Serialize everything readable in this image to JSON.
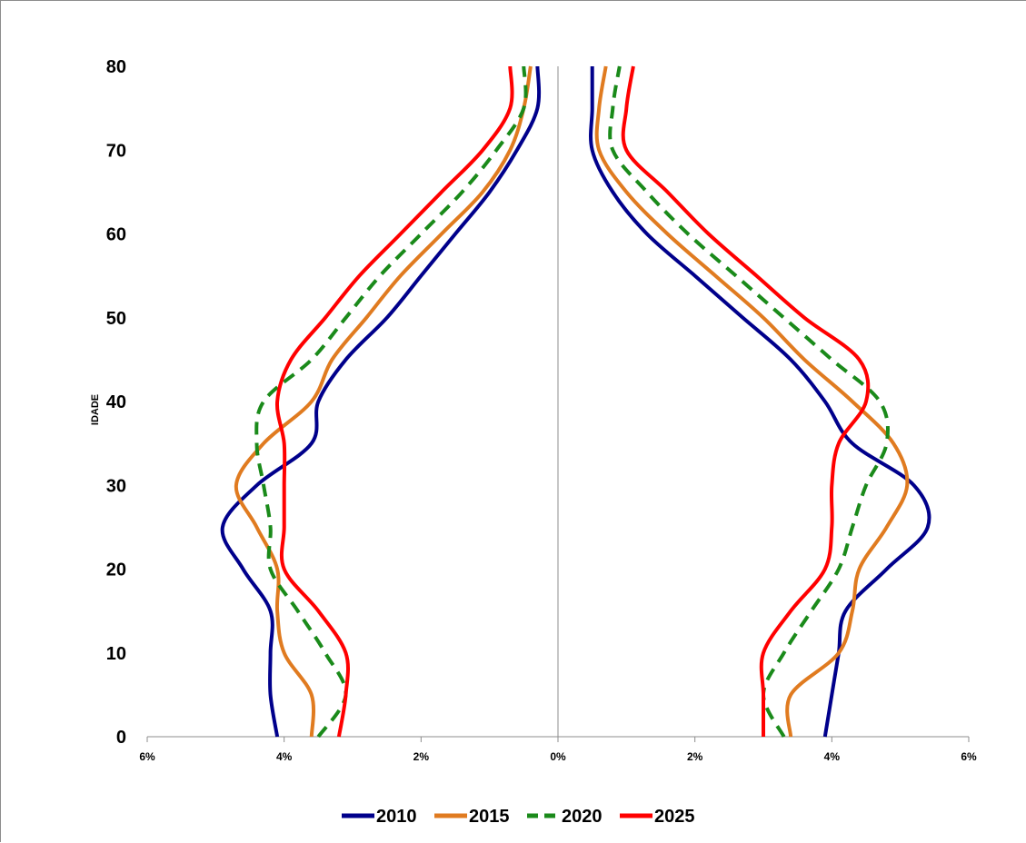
{
  "chart_data": {
    "type": "line",
    "title": "",
    "xlabel": "",
    "ylabel": "IDADE",
    "xlim": [
      -6,
      6
    ],
    "ylim": [
      0,
      80
    ],
    "x_ticks": [
      -6,
      -4,
      -2,
      0,
      2,
      4,
      6
    ],
    "x_tick_labels": [
      "6%",
      "4%",
      "2%",
      "0%",
      "2%",
      "4%",
      "6%"
    ],
    "y_ticks": [
      0,
      10,
      20,
      30,
      40,
      50,
      60,
      70,
      80
    ],
    "y_tick_labels": [
      "0",
      "10",
      "20",
      "30",
      "40",
      "50",
      "60",
      "70",
      "80"
    ],
    "grid": false,
    "legend_position": "bottom",
    "ages": [
      0,
      5,
      10,
      15,
      20,
      25,
      30,
      35,
      40,
      45,
      50,
      55,
      60,
      65,
      70,
      75,
      80
    ],
    "series": [
      {
        "name": "2010",
        "color": "#00008b",
        "dash": "solid",
        "left": [
          4.1,
          4.2,
          4.2,
          4.2,
          4.6,
          4.9,
          4.4,
          3.6,
          3.5,
          3.1,
          2.5,
          2.0,
          1.5,
          1.0,
          0.6,
          0.3,
          0.3
        ],
        "right": [
          3.9,
          4.0,
          4.1,
          4.2,
          4.8,
          5.4,
          5.2,
          4.3,
          3.9,
          3.4,
          2.7,
          2.0,
          1.3,
          0.8,
          0.5,
          0.5,
          0.5
        ]
      },
      {
        "name": "2015",
        "color": "#e07b20",
        "dash": "solid",
        "left": [
          3.6,
          3.6,
          4.0,
          4.1,
          4.1,
          4.4,
          4.7,
          4.3,
          3.6,
          3.3,
          2.8,
          2.3,
          1.7,
          1.1,
          0.7,
          0.5,
          0.4
        ],
        "right": [
          3.4,
          3.4,
          4.1,
          4.3,
          4.4,
          4.8,
          5.1,
          4.9,
          4.3,
          3.6,
          3.0,
          2.3,
          1.6,
          1.0,
          0.6,
          0.6,
          0.7
        ]
      },
      {
        "name": "2020",
        "color": "#1a8a1a",
        "dash": "dashed",
        "left": [
          3.5,
          3.1,
          3.4,
          3.8,
          4.2,
          4.2,
          4.3,
          4.4,
          4.3,
          3.6,
          3.1,
          2.6,
          2.0,
          1.4,
          0.9,
          0.5,
          0.5
        ],
        "right": [
          3.3,
          3.0,
          3.3,
          3.7,
          4.1,
          4.3,
          4.5,
          4.8,
          4.7,
          4.0,
          3.3,
          2.6,
          1.9,
          1.3,
          0.8,
          0.8,
          0.9
        ]
      },
      {
        "name": "2025",
        "color": "#ff0000",
        "dash": "solid",
        "left": [
          3.2,
          3.1,
          3.1,
          3.5,
          4.0,
          4.0,
          4.0,
          4.0,
          4.1,
          3.9,
          3.4,
          2.9,
          2.3,
          1.7,
          1.1,
          0.7,
          0.7
        ],
        "right": [
          3.0,
          3.0,
          3.0,
          3.4,
          3.9,
          4.0,
          4.0,
          4.1,
          4.5,
          4.4,
          3.6,
          2.9,
          2.2,
          1.6,
          1.0,
          1.0,
          1.1
        ]
      }
    ]
  }
}
